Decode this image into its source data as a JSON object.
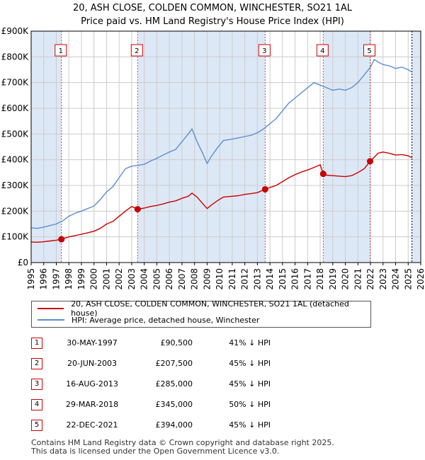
{
  "title": "20, ASH CLOSE, COLDEN COMMON, WINCHESTER, SO21 1AL",
  "subtitle": "Price paid vs. HM Land Registry's House Price Index (HPI)",
  "colors": {
    "price": "#cc0000",
    "hpi": "#5b8fd4",
    "shade": "#dde8f6",
    "grid": "#cccccc",
    "vline": "#cc0000"
  },
  "chart_data": {
    "type": "line",
    "xlim": [
      1995,
      2026
    ],
    "ylim": [
      0,
      900000
    ],
    "y_tick_labels": [
      "£0",
      "£100K",
      "£200K",
      "£300K",
      "£400K",
      "£500K",
      "£600K",
      "£700K",
      "£800K",
      "£900K"
    ],
    "x_tick_labels": [
      "1995",
      "1996",
      "1997",
      "1998",
      "1999",
      "2000",
      "2001",
      "2002",
      "2003",
      "2004",
      "2005",
      "2006",
      "2007",
      "2008",
      "2009",
      "2010",
      "2011",
      "2012",
      "2013",
      "2014",
      "2015",
      "2016",
      "2017",
      "2018",
      "2019",
      "2020",
      "2021",
      "2022",
      "2023",
      "2024",
      "2025",
      "2026"
    ],
    "series": [
      {
        "name": "20, ASH CLOSE, COLDEN COMMON, WINCHESTER, SO21 1AL (detached house)",
        "x": [
          1995.0,
          1995.5,
          1996.0,
          1996.5,
          1997.0,
          1997.41,
          1998.0,
          1998.5,
          1999.0,
          1999.5,
          2000.0,
          2000.5,
          2001.0,
          2001.5,
          2002.0,
          2002.5,
          2003.0,
          2003.47,
          2004.0,
          2004.5,
          2005.0,
          2005.5,
          2006.0,
          2006.5,
          2007.0,
          2007.5,
          2007.8,
          2008.2,
          2008.6,
          2009.0,
          2009.3,
          2009.8,
          2010.3,
          2011.0,
          2011.5,
          2012.0,
          2012.5,
          2013.0,
          2013.62,
          2014.0,
          2014.5,
          2015.0,
          2015.5,
          2016.0,
          2016.5,
          2017.0,
          2017.5,
          2018.0,
          2018.24,
          2018.5,
          2019.0,
          2019.5,
          2020.0,
          2020.5,
          2021.0,
          2021.5,
          2021.97,
          2022.3,
          2022.6,
          2023.0,
          2023.5,
          2024.0,
          2024.5,
          2025.0,
          2025.3
        ],
        "y": [
          80000,
          79000,
          81000,
          84000,
          87000,
          90500,
          100000,
          105000,
          110000,
          116000,
          122000,
          133000,
          150000,
          160000,
          180000,
          200000,
          218000,
          207500,
          212000,
          218000,
          222000,
          228000,
          235000,
          240000,
          250000,
          258000,
          270000,
          255000,
          232000,
          210000,
          222000,
          240000,
          255000,
          258000,
          260000,
          265000,
          268000,
          272000,
          285000,
          292000,
          300000,
          315000,
          330000,
          342000,
          352000,
          360000,
          370000,
          380000,
          345000,
          340000,
          338000,
          336000,
          334000,
          338000,
          350000,
          365000,
          394000,
          410000,
          425000,
          430000,
          425000,
          418000,
          420000,
          415000,
          408000
        ]
      },
      {
        "name": "HPI: Average price, detached house, Winchester",
        "x": [
          1995.0,
          1995.5,
          1996.0,
          1996.5,
          1997.0,
          1997.5,
          1998.0,
          1998.5,
          1999.0,
          1999.5,
          2000.0,
          2000.5,
          2001.0,
          2001.5,
          2002.0,
          2002.5,
          2003.0,
          2003.5,
          2004.0,
          2004.5,
          2005.0,
          2005.5,
          2006.0,
          2006.5,
          2007.0,
          2007.5,
          2007.8,
          2008.2,
          2008.6,
          2009.0,
          2009.3,
          2009.8,
          2010.3,
          2011.0,
          2011.5,
          2012.0,
          2012.5,
          2013.0,
          2013.5,
          2014.0,
          2014.5,
          2015.0,
          2015.5,
          2016.0,
          2016.5,
          2017.0,
          2017.5,
          2018.0,
          2018.5,
          2019.0,
          2019.5,
          2020.0,
          2020.5,
          2021.0,
          2021.5,
          2022.0,
          2022.3,
          2022.6,
          2023.0,
          2023.5,
          2024.0,
          2024.5,
          2025.0,
          2025.3
        ],
        "y": [
          135000,
          133000,
          138000,
          144000,
          150000,
          162000,
          180000,
          192000,
          200000,
          210000,
          220000,
          245000,
          275000,
          295000,
          330000,
          365000,
          375000,
          378000,
          382000,
          395000,
          405000,
          418000,
          430000,
          440000,
          470000,
          500000,
          520000,
          470000,
          430000,
          385000,
          410000,
          445000,
          475000,
          480000,
          485000,
          490000,
          495000,
          505000,
          520000,
          540000,
          560000,
          590000,
          620000,
          640000,
          660000,
          680000,
          700000,
          690000,
          680000,
          670000,
          675000,
          670000,
          680000,
          700000,
          730000,
          760000,
          790000,
          780000,
          770000,
          765000,
          755000,
          760000,
          750000,
          740000
        ]
      }
    ],
    "sales": [
      {
        "label": "1",
        "x": 1997.41,
        "y": 90500
      },
      {
        "label": "2",
        "x": 2003.47,
        "y": 207500
      },
      {
        "label": "3",
        "x": 2013.62,
        "y": 285000
      },
      {
        "label": "4",
        "x": 2018.24,
        "y": 345000
      },
      {
        "label": "5",
        "x": 2021.97,
        "y": 394000
      }
    ],
    "shaded_ranges": [
      [
        1995,
        1997.41
      ],
      [
        2003.47,
        2013.62
      ],
      [
        2018.24,
        2021.97
      ],
      [
        2025.3,
        2026
      ]
    ]
  },
  "legend": {
    "price": "20, ASH CLOSE, COLDEN COMMON, WINCHESTER, SO21 1AL (detached house)",
    "hpi": "HPI: Average price, detached house, Winchester"
  },
  "table": [
    {
      "num": "1",
      "date": "30-MAY-1997",
      "price": "£90,500",
      "hpi": "41% ↓ HPI"
    },
    {
      "num": "2",
      "date": "20-JUN-2003",
      "price": "£207,500",
      "hpi": "45% ↓ HPI"
    },
    {
      "num": "3",
      "date": "16-AUG-2013",
      "price": "£285,000",
      "hpi": "45% ↓ HPI"
    },
    {
      "num": "4",
      "date": "29-MAR-2018",
      "price": "£345,000",
      "hpi": "50% ↓ HPI"
    },
    {
      "num": "5",
      "date": "22-DEC-2021",
      "price": "£394,000",
      "hpi": "45% ↓ HPI"
    }
  ],
  "footer": {
    "line1": "Contains HM Land Registry data © Crown copyright and database right 2025.",
    "line2": "This data is licensed under the Open Government Licence v3.0."
  }
}
